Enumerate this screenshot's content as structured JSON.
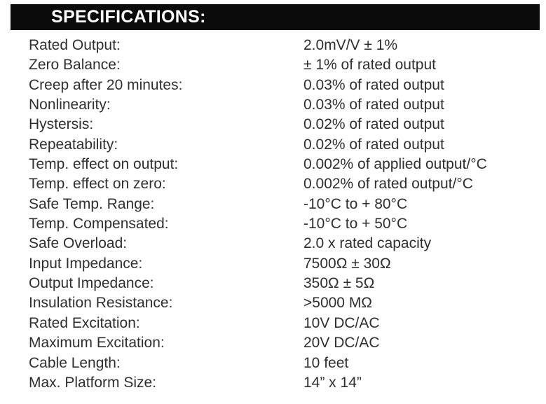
{
  "header": {
    "title": "SPECIFICATIONS:",
    "bar_color": "#0b0b0b",
    "text_color": "#ffffff"
  },
  "colors": {
    "background": "#ffffff",
    "body_text": "#2f2f2f"
  },
  "specs": {
    "rows": [
      {
        "label": "Rated Output:",
        "value": "2.0mV/V ± 1%"
      },
      {
        "label": "Zero Balance:",
        "value": "± 1% of rated output"
      },
      {
        "label": "Creep after 20 minutes:",
        "value": "0.03% of rated output"
      },
      {
        "label": "Nonlinearity:",
        "value": "0.03% of rated output"
      },
      {
        "label": "Hystersis:",
        "value": "0.02% of rated output"
      },
      {
        "label": "Repeatability:",
        "value": "0.02% of rated output"
      },
      {
        "label": "Temp. effect on output:",
        "value": "0.002% of applied output/°C"
      },
      {
        "label": "Temp. effect on zero:",
        "value": "0.002% of rated output/°C"
      },
      {
        "label": "Safe Temp. Range:",
        "value": "-10°C to + 80°C"
      },
      {
        "label": "Temp. Compensated:",
        "value": "-10°C to + 50°C"
      },
      {
        "label": "Safe Overload:",
        "value": "2.0 x rated capacity"
      },
      {
        "label": "Input Impedance:",
        "value": "7500Ω ± 30Ω"
      },
      {
        "label": "Output Impedance:",
        "value": "350Ω ± 5Ω"
      },
      {
        "label": "Insulation Resistance:",
        "value": ">5000 MΩ"
      },
      {
        "label": "Rated Excitation:",
        "value": "10V DC/AC"
      },
      {
        "label": "Maximum Excitation:",
        "value": "20V DC/AC"
      },
      {
        "label": "Cable Length:",
        "value": "10 feet"
      },
      {
        "label": "Max. Platform Size:",
        "value": "14” x 14”"
      }
    ]
  }
}
